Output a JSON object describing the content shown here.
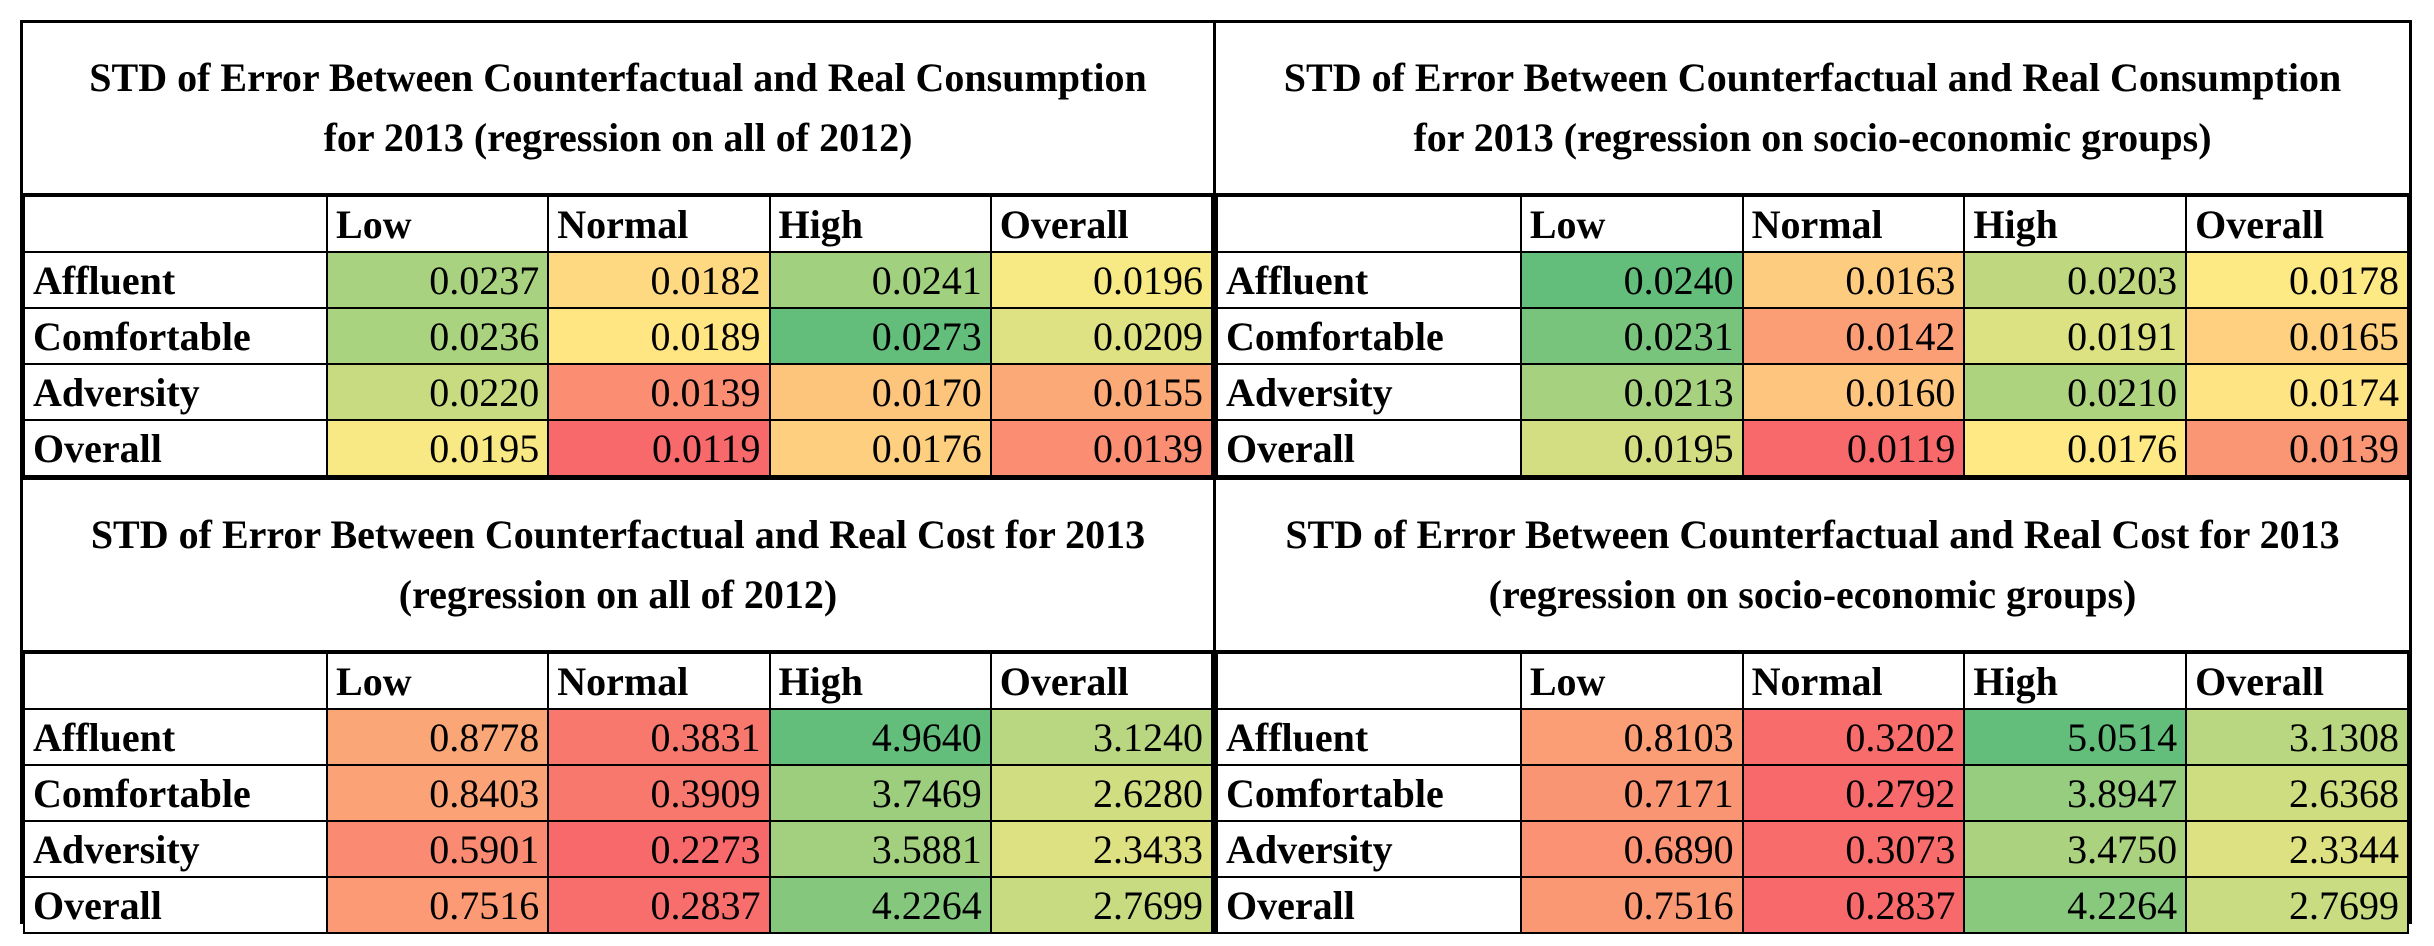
{
  "columns": [
    "Low",
    "Normal",
    "High",
    "Overall"
  ],
  "colors": {
    "green": "#63be7b",
    "yellow": "#ffeb84",
    "red": "#f8696b"
  },
  "panels": [
    {
      "title": "STD of Error Between Counterfactual and Real Consumption for 2013 (regression on all of 2012)",
      "rows": [
        {
          "label": "Affluent",
          "values": [
            "0.0237",
            "0.0182",
            "0.0241",
            "0.0196"
          ]
        },
        {
          "label": "Comfortable",
          "values": [
            "0.0236",
            "0.0189",
            "0.0273",
            "0.0209"
          ]
        },
        {
          "label": "Adversity",
          "values": [
            "0.0220",
            "0.0139",
            "0.0170",
            "0.0155"
          ]
        },
        {
          "label": "Overall",
          "values": [
            "0.0195",
            "0.0119",
            "0.0176",
            "0.0139"
          ]
        }
      ]
    },
    {
      "title": "STD of Error Between Counterfactual and Real Consumption for 2013 (regression on socio-economic groups)",
      "rows": [
        {
          "label": "Affluent",
          "values": [
            "0.0240",
            "0.0163",
            "0.0203",
            "0.0178"
          ]
        },
        {
          "label": "Comfortable",
          "values": [
            "0.0231",
            "0.0142",
            "0.0191",
            "0.0165"
          ]
        },
        {
          "label": "Adversity",
          "values": [
            "0.0213",
            "0.0160",
            "0.0210",
            "0.0174"
          ]
        },
        {
          "label": "Overall",
          "values": [
            "0.0195",
            "0.0119",
            "0.0176",
            "0.0139"
          ]
        }
      ]
    },
    {
      "title": "STD of Error Between Counterfactual and Real Cost for 2013 (regression on all of 2012)",
      "rows": [
        {
          "label": "Affluent",
          "values": [
            "0.8778",
            "0.3831",
            "4.9640",
            "3.1240"
          ]
        },
        {
          "label": "Comfortable",
          "values": [
            "0.8403",
            "0.3909",
            "3.7469",
            "2.6280"
          ]
        },
        {
          "label": "Adversity",
          "values": [
            "0.5901",
            "0.2273",
            "3.5881",
            "2.3433"
          ]
        },
        {
          "label": "Overall",
          "values": [
            "0.7516",
            "0.2837",
            "4.2264",
            "2.7699"
          ]
        }
      ]
    },
    {
      "title": "STD of Error Between Counterfactual and Real Cost for 2013 (regression on socio-economic groups)",
      "rows": [
        {
          "label": "Affluent",
          "values": [
            "0.8103",
            "0.3202",
            "5.0514",
            "3.1308"
          ]
        },
        {
          "label": "Comfortable",
          "values": [
            "0.7171",
            "0.2792",
            "3.8947",
            "2.6368"
          ]
        },
        {
          "label": "Adversity",
          "values": [
            "0.6890",
            "0.3073",
            "3.4750",
            "2.3344"
          ]
        },
        {
          "label": "Overall",
          "values": [
            "0.7516",
            "0.2837",
            "4.2264",
            "2.7699"
          ]
        }
      ]
    }
  ]
}
